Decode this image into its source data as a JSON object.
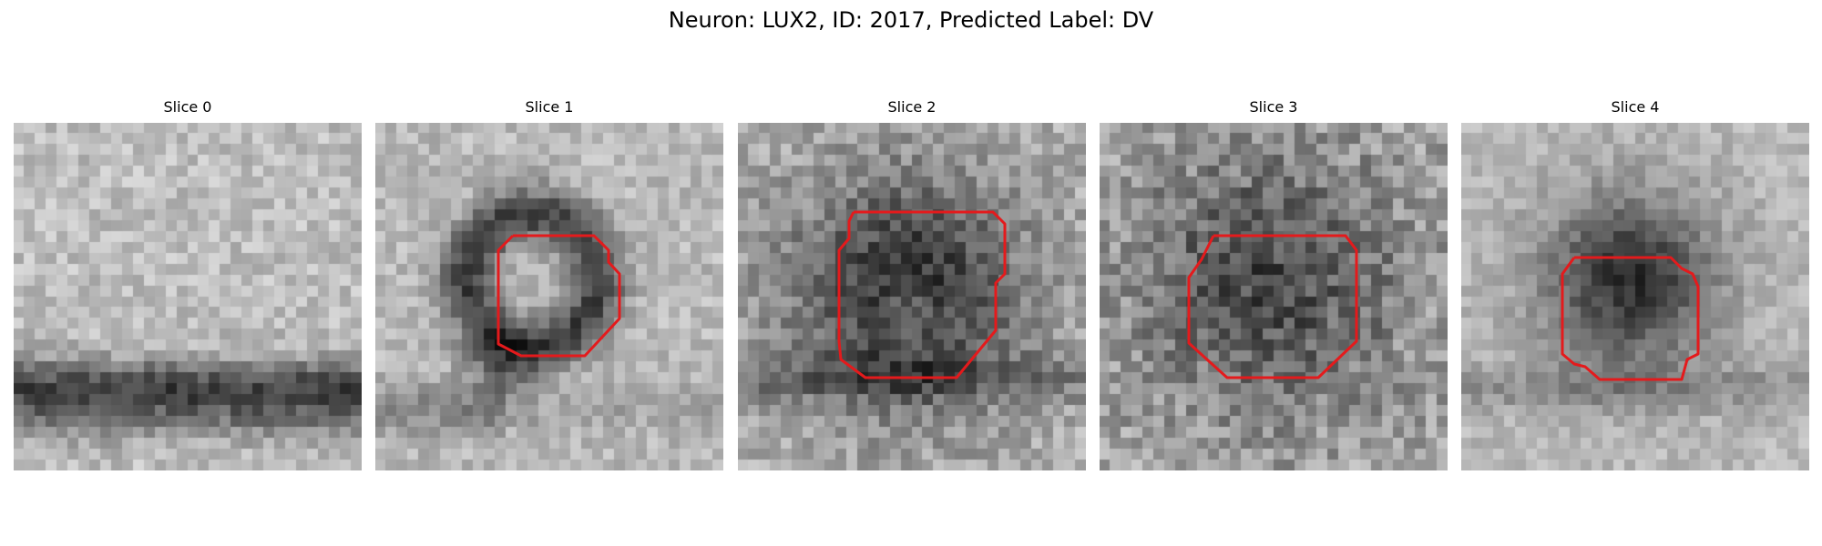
{
  "figure": {
    "title": "Neuron: LUX2, ID: 2017, Predicted Label: DV",
    "contour_color": "#e41a1c"
  },
  "slices": [
    {
      "label": "Slice 0"
    },
    {
      "label": "Slice 1"
    },
    {
      "label": "Slice 2"
    },
    {
      "label": "Slice 3"
    },
    {
      "label": "Slice 4"
    }
  ]
}
